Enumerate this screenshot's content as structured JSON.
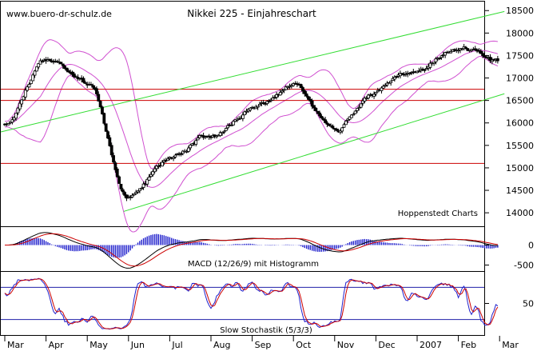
{
  "header": {
    "url": "www.buero-dr-schulz.de",
    "title": "Nikkei 225 - Einjahreschart"
  },
  "credit": "Hoppenstedt Charts",
  "colors": {
    "background": "#ffffff",
    "candle": "#000000",
    "bollinger": "#d050d0",
    "trend": "#33dd33",
    "support": "#cc0000",
    "macd": "#000000",
    "signal": "#cc0000",
    "histogram": "#2020cc",
    "stoch_k": "#2020cc",
    "stoch_d": "#cc0000",
    "stoch_levels": "#2020aa",
    "axis": "#000000"
  },
  "chart_data": [
    {
      "type": "candlestick",
      "title": "Nikkei 225 - Einjahreschart",
      "x_labels": [
        "Mar",
        "Apr",
        "May",
        "Jun",
        "Jul",
        "Aug",
        "Sep",
        "Oct",
        "Nov",
        "Dec",
        "2007",
        "Feb",
        "Mar"
      ],
      "y_ticks": [
        14000,
        14500,
        15000,
        15500,
        16000,
        16500,
        17000,
        17500,
        18000,
        18500
      ],
      "ylim": [
        13700,
        18700
      ],
      "grid": false,
      "overlays": [
        "bollinger bands",
        "trend channel",
        "horizontal support lines"
      ],
      "support_levels": [
        16750,
        16500,
        15100
      ],
      "trend_channel": {
        "upper": [
          {
            "x": "Mar",
            "y": 15800
          },
          {
            "x": "Mar",
            "y": 18480
          }
        ],
        "lower": [
          {
            "x": "Jun",
            "y": 14030
          },
          {
            "x": "Mar",
            "y": 16650
          }
        ]
      },
      "monthly_close_path": [
        {
          "x": "Mar",
          "y": 15950
        },
        {
          "x": "Apr",
          "y": 17400
        },
        {
          "x": "May",
          "y": 16900
        },
        {
          "x": "Jun",
          "y": 14400
        },
        {
          "x": "Jul",
          "y": 15200
        },
        {
          "x": "Aug",
          "y": 15700
        },
        {
          "x": "Sep",
          "y": 16300
        },
        {
          "x": "Oct",
          "y": 16800
        },
        {
          "x": "Nov",
          "y": 15800
        },
        {
          "x": "Dec",
          "y": 16700
        },
        {
          "x": "2007",
          "y": 17150
        },
        {
          "x": "Feb",
          "y": 17700
        },
        {
          "x": "Mar",
          "y": 17350
        }
      ]
    },
    {
      "type": "line",
      "title": "MACD (12/26/9) mit Histogramm",
      "y_ticks": [
        0,
        -500
      ],
      "ylim": [
        -650,
        450
      ],
      "series": [],
      "histogram": true
    },
    {
      "type": "line",
      "title": "Slow Stochastik (5/3/3)",
      "y_ticks": [
        50
      ],
      "ylim": [
        0,
        100
      ],
      "levels": [
        80,
        20
      ]
    }
  ]
}
